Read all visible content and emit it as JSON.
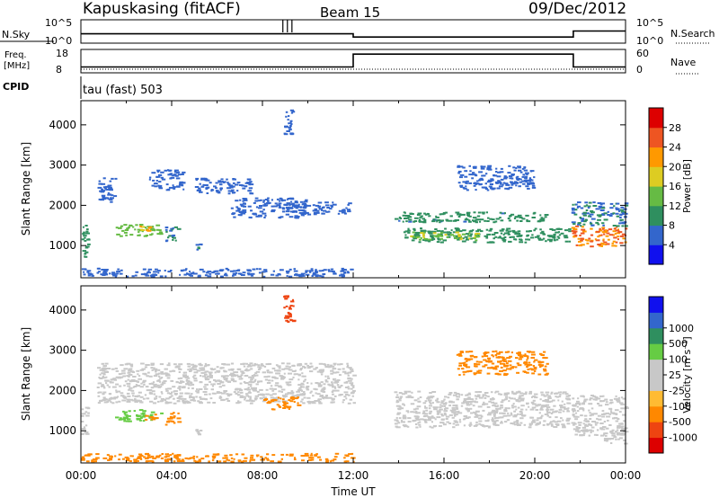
{
  "header": {
    "station": "Kapuskasing (fitACF)",
    "beam": "Beam 15",
    "date": "09/Dec/2012"
  },
  "strips": {
    "nsky_label": "N.Sky",
    "nsky_ticks": [
      "10^5",
      "10^0"
    ],
    "nsearch_label": "N.Search",
    "nsearch_ticks": [
      "10^5",
      "10^0"
    ],
    "freq_label_line1": "Freq.",
    "freq_label_line2": "[MHz]",
    "freq_ticks": [
      "18",
      "8"
    ],
    "nave_label": "Nave",
    "nave_ticks": [
      "60",
      "0"
    ],
    "cpid_label": "CPID",
    "cpid_text": "tau (fast) 503"
  },
  "axes": {
    "ylabel": "Slant Range [km]",
    "xlabel": "Time UT",
    "x_tick_labels": [
      "00:00",
      "04:00",
      "08:00",
      "12:00",
      "16:00",
      "20:00",
      "00:00"
    ],
    "y_tick_labels": [
      "1000",
      "2000",
      "3000",
      "4000"
    ]
  },
  "colors": {
    "power_scale": [
      "#1010ee",
      "#3366cc",
      "#2f8f5f",
      "#66bb44",
      "#ddcc22",
      "#ff9900",
      "#ee5522",
      "#dd0000"
    ],
    "velocity_scale": [
      "#dd0000",
      "#ee4411",
      "#ff8800",
      "#ffbb33",
      "#c8c8c8",
      "#c8c8c8",
      "#66cc44",
      "#2f8f5f",
      "#3366cc",
      "#1010ee"
    ]
  },
  "colorbars": {
    "power": {
      "label": "Power [dB]",
      "ticks": [
        "4",
        "8",
        "12",
        "16",
        "20",
        "24",
        "28"
      ]
    },
    "velocity": {
      "label": "Velocity [m s⁻¹]",
      "ticks": [
        "-1000",
        "-500",
        "-100",
        "-25",
        "25",
        "100",
        "500",
        "1000"
      ]
    }
  },
  "chart_data": [
    {
      "type": "heatmap",
      "title": "Power",
      "xlabel": "Time UT",
      "ylabel": "Slant Range [km]",
      "xlim": [
        0,
        24
      ],
      "ylim": [
        200,
        4600
      ],
      "colorbar": {
        "label": "Power [dB]",
        "ticks": [
          4,
          8,
          12,
          16,
          20,
          24,
          28
        ],
        "range": [
          0,
          32
        ]
      },
      "regions": [
        {
          "t": [
            0.0,
            0.3
          ],
          "r": [
            700,
            1600
          ],
          "value": 10
        },
        {
          "t": [
            0.7,
            1.5
          ],
          "r": [
            2100,
            2700
          ],
          "value": 6
        },
        {
          "t": [
            1.5,
            3.5
          ],
          "r": [
            1250,
            1550
          ],
          "value": 14
        },
        {
          "t": [
            2.5,
            3.0
          ],
          "r": [
            1300,
            1500
          ],
          "value": 20
        },
        {
          "t": [
            3.0,
            4.5
          ],
          "r": [
            2400,
            2900
          ],
          "value": 6
        },
        {
          "t": [
            3.7,
            4.3
          ],
          "r": [
            1100,
            1500
          ],
          "value": 8
        },
        {
          "t": [
            5.0,
            5.3
          ],
          "r": [
            900,
            1100
          ],
          "value": 8
        },
        {
          "t": [
            5.0,
            7.5
          ],
          "r": [
            2300,
            2700
          ],
          "value": 6
        },
        {
          "t": [
            6.5,
            10.0
          ],
          "r": [
            1700,
            2200
          ],
          "value": 6
        },
        {
          "t": [
            9.0,
            11.8
          ],
          "r": [
            1800,
            2100
          ],
          "value": 7
        },
        {
          "t": [
            8.9,
            9.3
          ],
          "r": [
            3700,
            4400
          ],
          "value": 6
        },
        {
          "t": [
            0.0,
            12.0
          ],
          "r": [
            250,
            450
          ],
          "value": 7
        },
        {
          "t": [
            13.8,
            20.6
          ],
          "r": [
            1600,
            1850
          ],
          "value": 9
        },
        {
          "t": [
            14.2,
            21.5
          ],
          "r": [
            1100,
            1450
          ],
          "value": 10
        },
        {
          "t": [
            14.5,
            17.5
          ],
          "r": [
            1150,
            1350
          ],
          "value": 16
        },
        {
          "t": [
            16.5,
            20.0
          ],
          "r": [
            2400,
            3000
          ],
          "value": 6
        },
        {
          "t": [
            21.6,
            24.0
          ],
          "r": [
            1000,
            1500
          ],
          "value": 24
        },
        {
          "t": [
            21.6,
            24.0
          ],
          "r": [
            1500,
            2100
          ],
          "value": 8
        }
      ]
    },
    {
      "type": "heatmap",
      "title": "Velocity",
      "xlabel": "Time UT",
      "ylabel": "Slant Range [km]",
      "xlim": [
        0,
        24
      ],
      "ylim": [
        200,
        4600
      ],
      "colorbar": {
        "label": "Velocity [m s⁻¹]",
        "ticks": [
          -1000,
          -500,
          -100,
          -25,
          25,
          100,
          500,
          1000
        ]
      },
      "regions": [
        {
          "t": [
            0.0,
            0.3
          ],
          "r": [
            900,
            1600
          ],
          "value": 60
        },
        {
          "t": [
            0.7,
            12.0
          ],
          "r": [
            1700,
            2700
          ],
          "value": 0
        },
        {
          "t": [
            1.5,
            3.5
          ],
          "r": [
            1250,
            1550
          ],
          "value": 120
        },
        {
          "t": [
            2.8,
            3.3
          ],
          "r": [
            1250,
            1450
          ],
          "value": -150
        },
        {
          "t": [
            3.7,
            4.3
          ],
          "r": [
            1150,
            1500
          ],
          "value": -120
        },
        {
          "t": [
            5.0,
            5.3
          ],
          "r": [
            900,
            1100
          ],
          "value": 60
        },
        {
          "t": [
            8.0,
            9.7
          ],
          "r": [
            1550,
            1850
          ],
          "value": -200
        },
        {
          "t": [
            8.9,
            9.4
          ],
          "r": [
            3700,
            4400
          ],
          "value": -800
        },
        {
          "t": [
            0.0,
            12.0
          ],
          "r": [
            250,
            450
          ],
          "value": -150
        },
        {
          "t": [
            13.8,
            21.5
          ],
          "r": [
            1100,
            2000
          ],
          "value": 0
        },
        {
          "t": [
            21.6,
            24.0
          ],
          "r": [
            900,
            1900
          ],
          "value": 0
        },
        {
          "t": [
            16.5,
            20.5
          ],
          "r": [
            2400,
            3000
          ],
          "value": -150
        },
        {
          "t": [
            23.0,
            24.0
          ],
          "r": [
            700,
            1000
          ],
          "value": 60
        }
      ]
    },
    {
      "type": "line",
      "title": "N.Sky",
      "x_range": [
        0,
        24
      ],
      "y_range": [
        0,
        5
      ],
      "y_scale": "log",
      "segments": [
        {
          "t": [
            0.0,
            12.0
          ],
          "value": 2.0
        },
        {
          "t": [
            12.0,
            21.7
          ],
          "value": 1.3
        },
        {
          "t": [
            21.7,
            24.0
          ],
          "value": 2.6
        }
      ]
    },
    {
      "type": "line",
      "title": "Freq. [MHz]",
      "x_range": [
        0,
        24
      ],
      "y_range": [
        8,
        18
      ],
      "segments": [
        {
          "t": [
            0.0,
            12.0
          ],
          "value": 10.5
        },
        {
          "t": [
            12.0,
            21.7
          ],
          "value": 16.0
        },
        {
          "t": [
            21.7,
            24.0
          ],
          "value": 10.5
        }
      ]
    }
  ]
}
